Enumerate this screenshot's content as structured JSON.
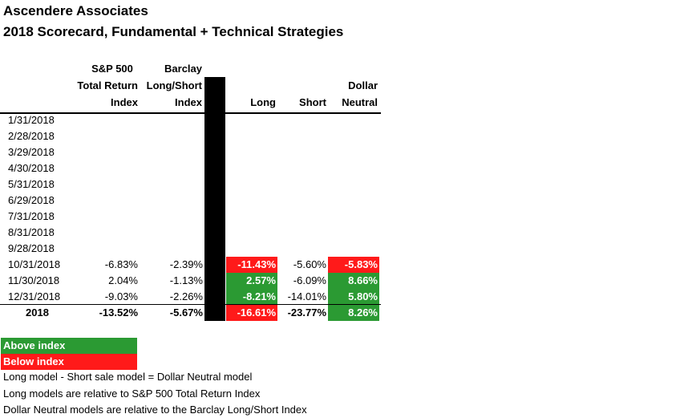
{
  "title": "Ascendere Associates",
  "subtitle": "2018 Scorecard, Fundamental + Technical Strategies",
  "headers": {
    "sp_line1": "S&P 500",
    "sp_line2": "Total Return",
    "sp_line3": "Index",
    "barclay_line1": "Barclay",
    "barclay_line2": "Long/Short",
    "barclay_line3": "Index",
    "long": "Long",
    "short": "Short",
    "dn_line1": "Dollar",
    "dn_line2": "Neutral"
  },
  "colors": {
    "above": "#2b9a33",
    "below": "#ff1a1a"
  },
  "rows": [
    {
      "date": "1/31/2018",
      "sp": "",
      "barclay": "",
      "long": "",
      "short": "",
      "dn": "",
      "long_status": "",
      "dn_status": ""
    },
    {
      "date": "2/28/2018",
      "sp": "",
      "barclay": "",
      "long": "",
      "short": "",
      "dn": "",
      "long_status": "",
      "dn_status": ""
    },
    {
      "date": "3/29/2018",
      "sp": "",
      "barclay": "",
      "long": "",
      "short": "",
      "dn": "",
      "long_status": "",
      "dn_status": ""
    },
    {
      "date": "4/30/2018",
      "sp": "",
      "barclay": "",
      "long": "",
      "short": "",
      "dn": "",
      "long_status": "",
      "dn_status": ""
    },
    {
      "date": "5/31/2018",
      "sp": "",
      "barclay": "",
      "long": "",
      "short": "",
      "dn": "",
      "long_status": "",
      "dn_status": ""
    },
    {
      "date": "6/29/2018",
      "sp": "",
      "barclay": "",
      "long": "",
      "short": "",
      "dn": "",
      "long_status": "",
      "dn_status": ""
    },
    {
      "date": "7/31/2018",
      "sp": "",
      "barclay": "",
      "long": "",
      "short": "",
      "dn": "",
      "long_status": "",
      "dn_status": ""
    },
    {
      "date": "8/31/2018",
      "sp": "",
      "barclay": "",
      "long": "",
      "short": "",
      "dn": "",
      "long_status": "",
      "dn_status": ""
    },
    {
      "date": "9/28/2018",
      "sp": "",
      "barclay": "",
      "long": "",
      "short": "",
      "dn": "",
      "long_status": "",
      "dn_status": ""
    },
    {
      "date": "10/31/2018",
      "sp": "-6.83%",
      "barclay": "-2.39%",
      "long": "-11.43%",
      "short": "-5.60%",
      "dn": "-5.83%",
      "long_status": "below",
      "dn_status": "below"
    },
    {
      "date": "11/30/2018",
      "sp": "2.04%",
      "barclay": "-1.13%",
      "long": "2.57%",
      "short": "-6.09%",
      "dn": "8.66%",
      "long_status": "above",
      "dn_status": "above"
    },
    {
      "date": "12/31/2018",
      "sp": "-9.03%",
      "barclay": "-2.26%",
      "long": "-8.21%",
      "short": "-14.01%",
      "dn": "5.80%",
      "long_status": "above",
      "dn_status": "above"
    }
  ],
  "total": {
    "date": "2018",
    "sp": "-13.52%",
    "barclay": "-5.67%",
    "long": "-16.61%",
    "short": "-23.77%",
    "dn": "8.26%",
    "long_status": "below",
    "dn_status": "above"
  },
  "legend": {
    "above": "Above index",
    "below": "Below index"
  },
  "notes": [
    "Long model - Short sale model = Dollar Neutral model",
    "Long models are relative to S&P 500 Total Return Index",
    "Dollar Neutral models are relative to the Barclay Long/Short Index"
  ]
}
